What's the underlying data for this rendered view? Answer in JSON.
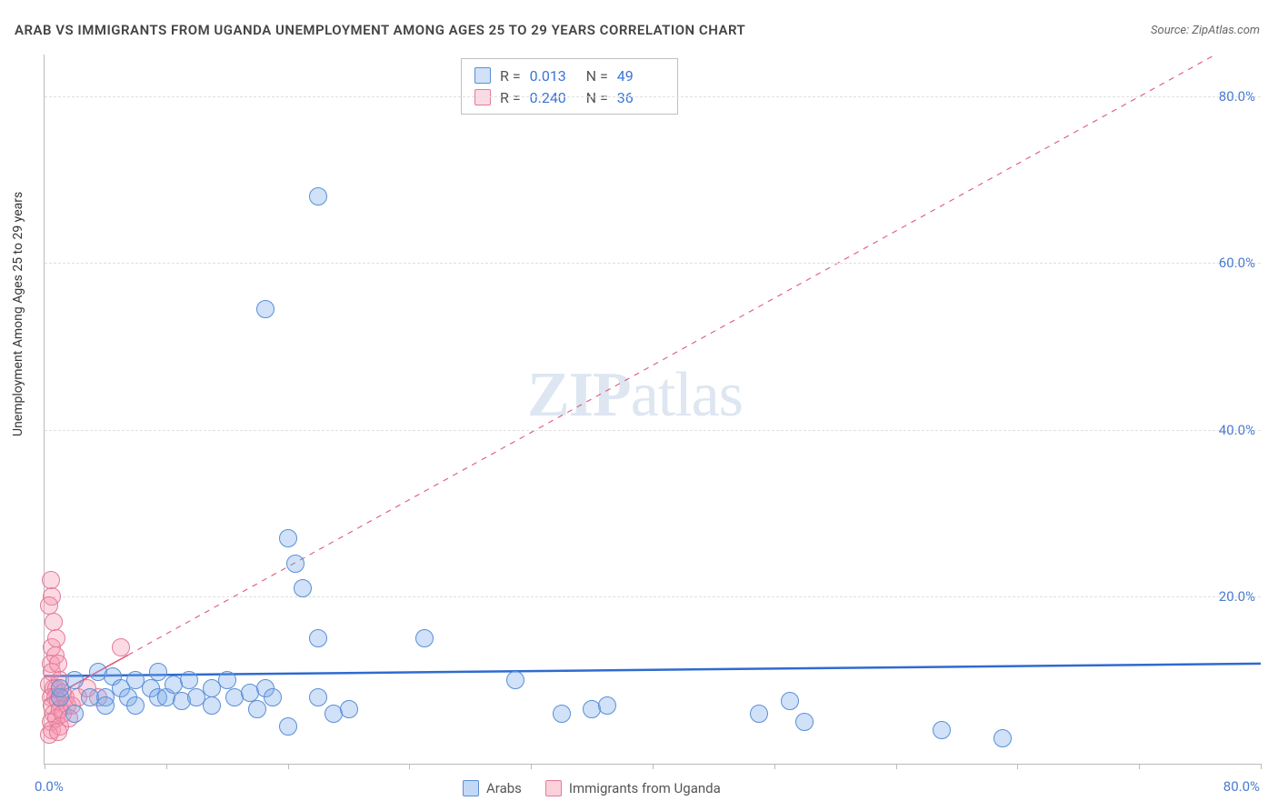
{
  "title": "ARAB VS IMMIGRANTS FROM UGANDA UNEMPLOYMENT AMONG AGES 25 TO 29 YEARS CORRELATION CHART",
  "source": "Source: ZipAtlas.com",
  "ylabel": "Unemployment Among Ages 25 to 29 years",
  "watermark_bold": "ZIP",
  "watermark_rest": "atlas",
  "chart": {
    "type": "scatter",
    "xlim": [
      0,
      80
    ],
    "ylim": [
      0,
      85
    ],
    "x_min_label": "0.0%",
    "x_max_label": "80.0%",
    "y_ticks": [
      20,
      40,
      60,
      80
    ],
    "y_tick_labels": [
      "20.0%",
      "40.0%",
      "60.0%",
      "80.0%"
    ],
    "x_ticks": [
      0,
      8,
      16,
      24,
      32,
      40,
      48,
      56,
      64,
      72,
      80
    ],
    "grid_color": "#e0e0e0",
    "background_color": "#ffffff",
    "axis_color": "#bbbbbb",
    "tick_label_color": "#4a7bd1",
    "marker_radius": 10,
    "marker_border_width": 1.2,
    "series": [
      {
        "name": "Arabs",
        "fill": "rgba(120,170,235,0.35)",
        "stroke": "#5a8fd6",
        "R": 0.013,
        "N": 49,
        "trend": {
          "y_at_x0": 10.5,
          "y_at_xmax": 12.0,
          "solid_until_x": 80,
          "color": "#2f6bd0",
          "width": 2.5
        },
        "points": [
          [
            1,
            8
          ],
          [
            1,
            9
          ],
          [
            2,
            10
          ],
          [
            2,
            6
          ],
          [
            3,
            8
          ],
          [
            3.5,
            11
          ],
          [
            4,
            8
          ],
          [
            4,
            7
          ],
          [
            4.5,
            10.5
          ],
          [
            5,
            9
          ],
          [
            5.5,
            8
          ],
          [
            6,
            7
          ],
          [
            6,
            10
          ],
          [
            7,
            9
          ],
          [
            7.5,
            11
          ],
          [
            7.5,
            8
          ],
          [
            8,
            8
          ],
          [
            8.5,
            9.5
          ],
          [
            9,
            7.5
          ],
          [
            9.5,
            10
          ],
          [
            10,
            8
          ],
          [
            11,
            9
          ],
          [
            11,
            7
          ],
          [
            12,
            10
          ],
          [
            12.5,
            8
          ],
          [
            13.5,
            8.5
          ],
          [
            14,
            6.5
          ],
          [
            14.5,
            9
          ],
          [
            15,
            8
          ],
          [
            16,
            4.5
          ],
          [
            16,
            27
          ],
          [
            16.5,
            24
          ],
          [
            17,
            21
          ],
          [
            18,
            15
          ],
          [
            18,
            8
          ],
          [
            19,
            6
          ],
          [
            20,
            6.5
          ],
          [
            18,
            68
          ],
          [
            14.5,
            54.5
          ],
          [
            25,
            15
          ],
          [
            31,
            10
          ],
          [
            34,
            6
          ],
          [
            36,
            6.5
          ],
          [
            37,
            7
          ],
          [
            47,
            6
          ],
          [
            49,
            7.5
          ],
          [
            50,
            5
          ],
          [
            59,
            4
          ],
          [
            63,
            3
          ]
        ]
      },
      {
        "name": "Immigrants from Uganda",
        "fill": "rgba(245,150,175,0.35)",
        "stroke": "#e47a9a",
        "R": 0.24,
        "N": 36,
        "trend": {
          "y_at_x0": 7.5,
          "y_at_xmax": 88,
          "solid_until_x": 5.5,
          "color": "#e05a80",
          "width": 1.6
        },
        "points": [
          [
            0.4,
            22
          ],
          [
            0.5,
            20
          ],
          [
            0.3,
            19
          ],
          [
            0.6,
            17
          ],
          [
            0.5,
            14
          ],
          [
            0.8,
            15
          ],
          [
            0.4,
            12
          ],
          [
            0.7,
            13
          ],
          [
            0.5,
            11
          ],
          [
            0.9,
            12
          ],
          [
            0.3,
            9.5
          ],
          [
            0.6,
            9
          ],
          [
            0.8,
            9
          ],
          [
            1.0,
            10
          ],
          [
            0.4,
            8
          ],
          [
            0.7,
            8
          ],
          [
            1.2,
            8.5
          ],
          [
            0.5,
            7
          ],
          [
            0.9,
            7.5
          ],
          [
            1.4,
            8
          ],
          [
            0.6,
            6
          ],
          [
            1.0,
            6.5
          ],
          [
            1.5,
            7
          ],
          [
            0.4,
            5
          ],
          [
            0.8,
            5.5
          ],
          [
            1.2,
            6
          ],
          [
            1.8,
            7
          ],
          [
            0.5,
            4
          ],
          [
            1.0,
            4.5
          ],
          [
            1.6,
            5.5
          ],
          [
            0.3,
            3.5
          ],
          [
            0.9,
            3.8
          ],
          [
            2.2,
            8
          ],
          [
            2.8,
            9
          ],
          [
            3.5,
            8
          ],
          [
            5.0,
            14
          ]
        ]
      }
    ]
  },
  "legend_bottom": [
    {
      "label": "Arabs",
      "fill": "rgba(120,170,235,0.45)",
      "stroke": "#5a8fd6"
    },
    {
      "label": "Immigrants from Uganda",
      "fill": "rgba(245,150,175,0.45)",
      "stroke": "#e47a9a"
    }
  ],
  "legend_top_labels": {
    "R": "R  =",
    "N": "N  ="
  }
}
